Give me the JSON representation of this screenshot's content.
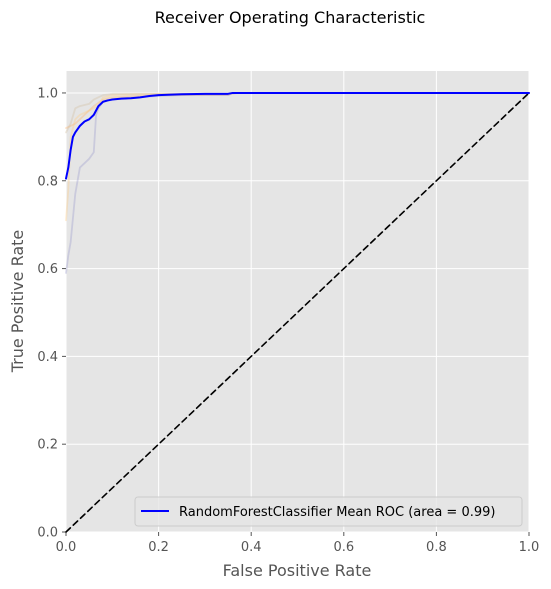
{
  "chart_data": {
    "type": "line",
    "title": "Receiver Operating Characteristic",
    "xlabel": "False Positive Rate",
    "ylabel": "True Positive Rate",
    "xlim": [
      0,
      1
    ],
    "ylim": [
      0,
      1.05
    ],
    "grid": true,
    "legend_position": "lower right",
    "x_ticks": [
      "0.0",
      "0.2",
      "0.4",
      "0.6",
      "0.8",
      "1.0"
    ],
    "y_ticks": [
      "0.0",
      "0.2",
      "0.4",
      "0.6",
      "0.8",
      "1.0"
    ],
    "series": [
      {
        "name": "RandomForestClassifier Mean ROC (area = 0.99)",
        "color": "#0000ff",
        "style": "solid",
        "in_legend": true,
        "x": [
          0,
          0.005,
          0.01,
          0.015,
          0.02,
          0.03,
          0.04,
          0.05,
          0.06,
          0.07,
          0.08,
          0.09,
          0.1,
          0.12,
          0.14,
          0.16,
          0.18,
          0.2,
          0.22,
          0.25,
          0.3,
          0.35,
          0.36,
          0.37,
          0.4,
          0.5,
          0.6,
          0.7,
          0.8,
          0.9,
          1.0
        ],
        "y": [
          0.805,
          0.83,
          0.87,
          0.9,
          0.91,
          0.925,
          0.935,
          0.94,
          0.95,
          0.97,
          0.98,
          0.983,
          0.985,
          0.987,
          0.988,
          0.99,
          0.993,
          0.995,
          0.996,
          0.997,
          0.998,
          0.998,
          1.0,
          1.0,
          1.0,
          1.0,
          1.0,
          1.0,
          1.0,
          1.0,
          1.0
        ]
      },
      {
        "name": "",
        "color": "#ffb366",
        "style": "faint",
        "in_legend": false,
        "x": [
          0,
          0.01,
          0.02,
          0.03,
          0.04,
          0.06,
          0.08,
          0.1,
          0.15,
          0.2,
          0.25,
          0.3,
          0.34,
          0.35,
          0.36,
          0.4,
          1.0
        ],
        "y": [
          0.92,
          0.925,
          0.93,
          0.94,
          0.95,
          0.97,
          0.985,
          0.99,
          0.993,
          0.995,
          0.995,
          0.995,
          0.995,
          0.995,
          1.0,
          1.0,
          1.0
        ]
      },
      {
        "name": "",
        "color": "#ffcc80",
        "style": "faint",
        "in_legend": false,
        "x": [
          0,
          0.005,
          0.01,
          0.02,
          0.03,
          0.05,
          0.07,
          0.08,
          0.1,
          0.15,
          0.2,
          0.25,
          0.3,
          0.35,
          0.37,
          1.0
        ],
        "y": [
          0.71,
          0.78,
          0.9,
          0.94,
          0.95,
          0.96,
          0.97,
          0.99,
          0.995,
          0.997,
          0.998,
          0.998,
          0.998,
          0.998,
          1.0,
          1.0
        ]
      },
      {
        "name": "",
        "color": "#d2bd9f",
        "style": "faint",
        "in_legend": false,
        "x": [
          0,
          0.005,
          0.01,
          0.02,
          0.03,
          0.05,
          0.06,
          0.07,
          0.08,
          0.1,
          0.15,
          0.2,
          0.3,
          0.36,
          0.37,
          1.0
        ],
        "y": [
          0.91,
          0.92,
          0.93,
          0.965,
          0.97,
          0.975,
          0.985,
          0.99,
          0.995,
          0.998,
          0.998,
          0.998,
          0.998,
          0.998,
          1.0,
          1.0
        ]
      },
      {
        "name": "",
        "color": "#9999cc",
        "style": "faint",
        "in_legend": false,
        "x": [
          0,
          0.005,
          0.01,
          0.02,
          0.03,
          0.04,
          0.05,
          0.06,
          0.065,
          0.07,
          0.08,
          0.1,
          0.12,
          0.15,
          0.2,
          0.25,
          0.3,
          0.35,
          0.36,
          0.37,
          1.0
        ],
        "y": [
          0.59,
          0.63,
          0.66,
          0.77,
          0.83,
          0.84,
          0.85,
          0.865,
          0.95,
          0.965,
          0.98,
          0.985,
          0.988,
          0.99,
          0.993,
          0.995,
          0.995,
          0.995,
          1.0,
          1.0,
          1.0
        ]
      },
      {
        "name": "",
        "color": "#000000",
        "style": "dashed",
        "in_legend": false,
        "x": [
          0,
          1
        ],
        "y": [
          0,
          1
        ]
      }
    ]
  }
}
